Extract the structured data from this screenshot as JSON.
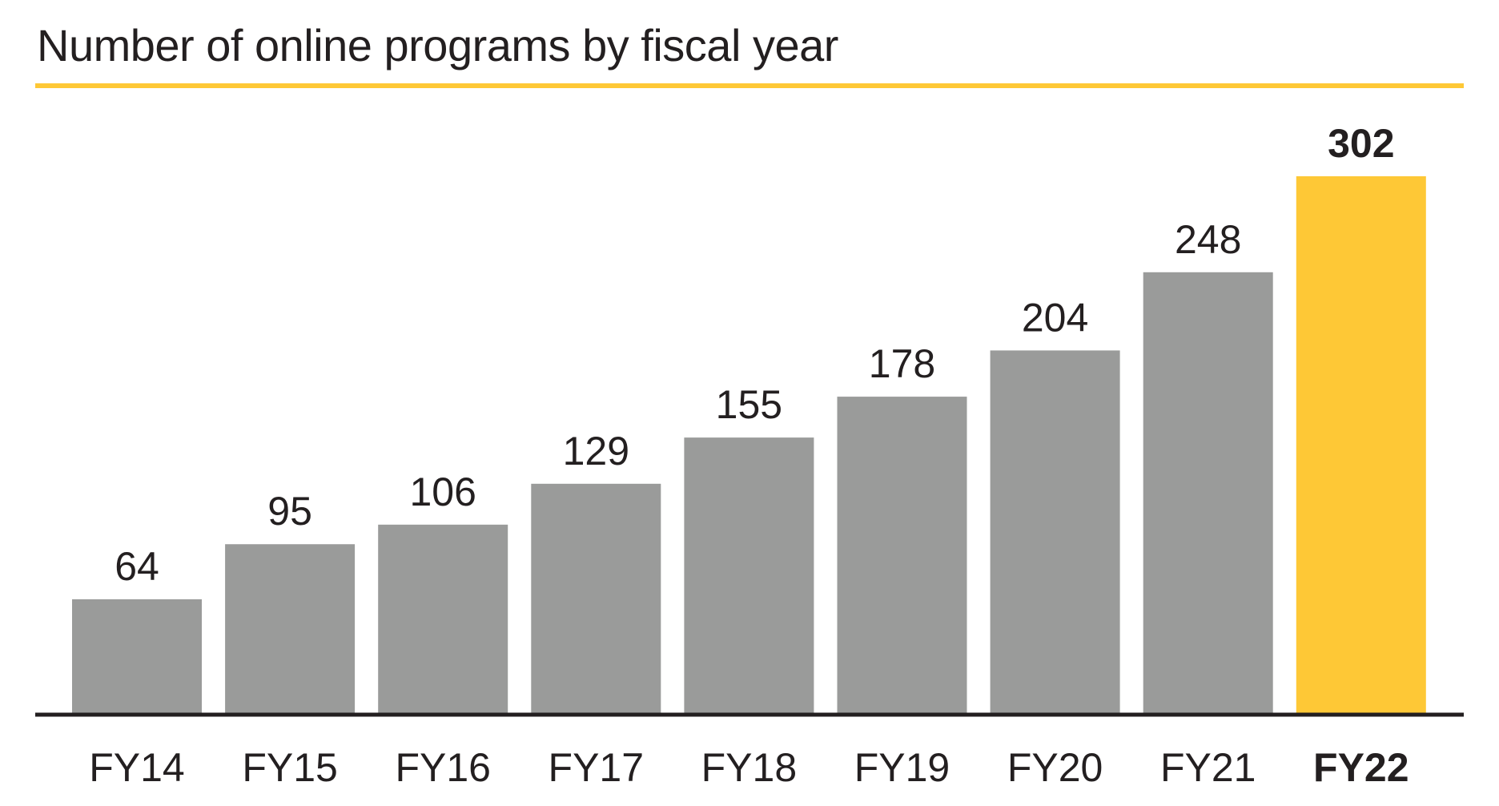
{
  "title": "Number of online programs by fiscal year",
  "colors": {
    "bar": "#9a9b9a",
    "highlight": "#fec836",
    "axis": "#231f20",
    "text": "#231f20"
  },
  "chart_data": {
    "type": "bar",
    "title": "Number of online programs by fiscal year",
    "categories": [
      "FY14",
      "FY15",
      "FY16",
      "FY17",
      "FY18",
      "FY19",
      "FY20",
      "FY21",
      "FY22"
    ],
    "values": [
      64,
      95,
      106,
      129,
      155,
      178,
      204,
      248,
      302
    ],
    "value_labels": [
      "64",
      "95",
      "106",
      "129",
      "155",
      "178",
      "204",
      "248",
      "302"
    ],
    "highlight_category": "FY22",
    "xlabel": "",
    "ylabel": "",
    "ylim": [
      0,
      302
    ],
    "grid": false,
    "legend": "none"
  }
}
